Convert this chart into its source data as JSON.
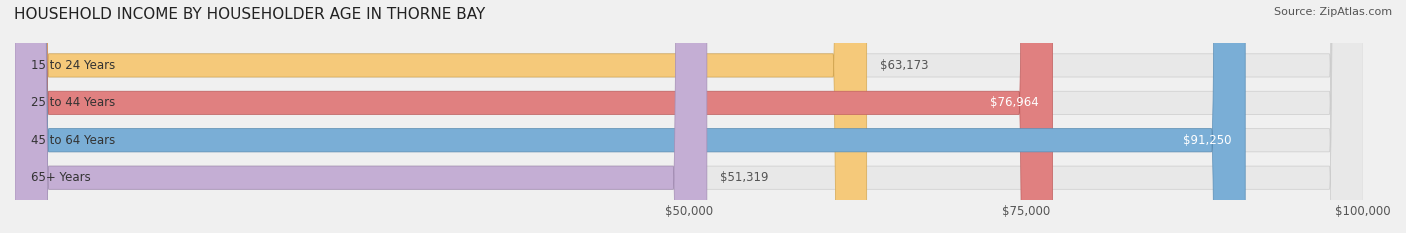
{
  "title": "HOUSEHOLD INCOME BY HOUSEHOLDER AGE IN THORNE BAY",
  "source": "Source: ZipAtlas.com",
  "categories": [
    "15 to 24 Years",
    "25 to 44 Years",
    "45 to 64 Years",
    "65+ Years"
  ],
  "values": [
    63173,
    76964,
    91250,
    51319
  ],
  "labels": [
    "$63,173",
    "$76,964",
    "$91,250",
    "$51,319"
  ],
  "bar_colors": [
    "#f5c97a",
    "#e08080",
    "#7aaed6",
    "#c4aed4"
  ],
  "bar_edge_colors": [
    "#d4a855",
    "#c06060",
    "#5a8eb6",
    "#a48eb4"
  ],
  "xmin": 0,
  "xmax": 100000,
  "xticks": [
    50000,
    75000,
    100000
  ],
  "xticklabels": [
    "$50,000",
    "$75,000",
    "$100,000"
  ],
  "bg_color": "#f0f0f0",
  "bar_bg_color": "#e8e8e8",
  "title_fontsize": 11,
  "label_fontsize": 8.5,
  "tick_fontsize": 8.5,
  "source_fontsize": 8
}
